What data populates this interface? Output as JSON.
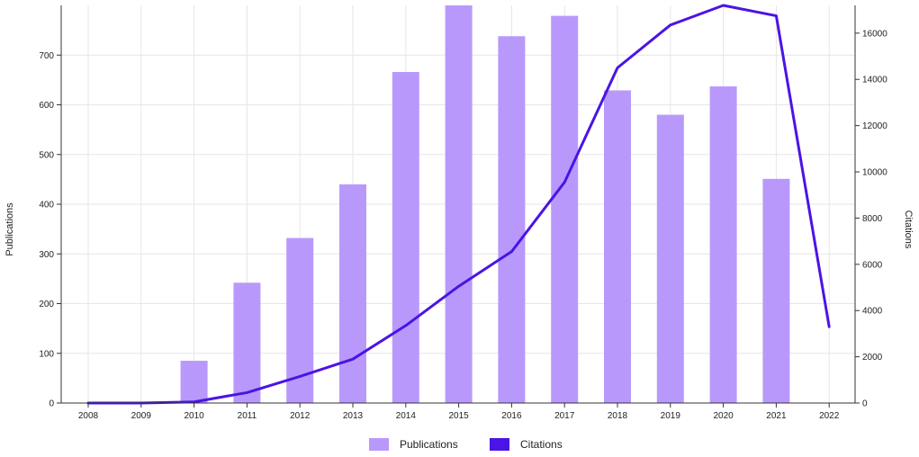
{
  "chart_data": {
    "type": "bar",
    "title": "",
    "categories": [
      "2008",
      "2009",
      "2010",
      "2011",
      "2012",
      "2013",
      "2014",
      "2015",
      "2016",
      "2017",
      "2018",
      "2019",
      "2020",
      "2021",
      "2022"
    ],
    "series": [
      {
        "name": "Publications",
        "type": "bar",
        "axis": "left",
        "color": "#b899fb",
        "values": [
          0,
          0,
          85,
          242,
          332,
          440,
          666,
          800,
          738,
          779,
          629,
          580,
          637,
          451,
          0
        ]
      },
      {
        "name": "Citations",
        "type": "line",
        "axis": "right",
        "color": "#4a14e6",
        "values": [
          0,
          0,
          50,
          450,
          1150,
          1900,
          3350,
          5050,
          6550,
          9550,
          14500,
          16350,
          17200,
          16750,
          3300
        ]
      }
    ],
    "ylabel": "Publications",
    "y2label": "Citations",
    "ylim": [
      0,
      800
    ],
    "yticks": [
      0,
      100,
      200,
      300,
      400,
      500,
      600,
      700
    ],
    "y2lim": [
      0,
      17200
    ],
    "y2ticks": [
      0,
      2000,
      4000,
      6000,
      8000,
      10000,
      12000,
      14000,
      16000
    ],
    "grid": true,
    "legend_position": "bottom-center"
  }
}
